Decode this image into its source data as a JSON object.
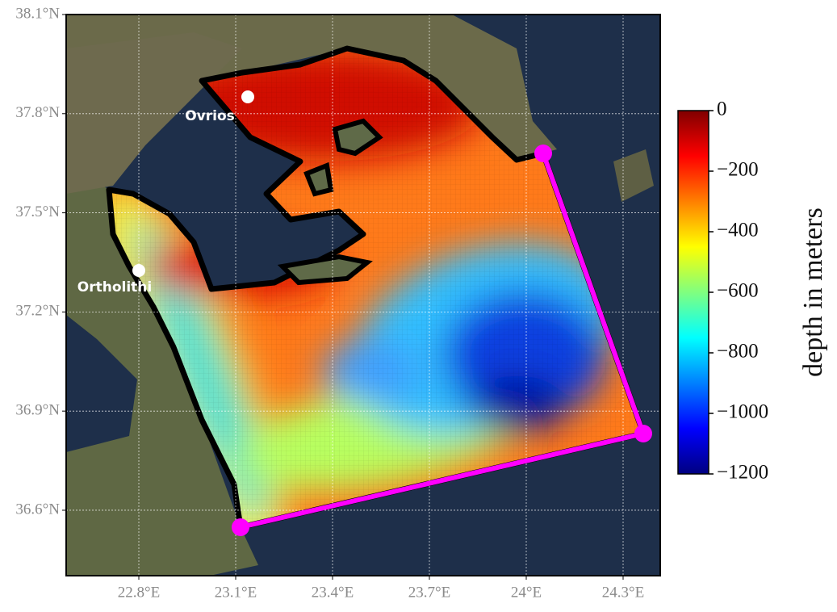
{
  "map": {
    "xlim": [
      22.575,
      24.415
    ],
    "ylim": [
      36.402,
      38.1
    ],
    "xticks": [
      {
        "value": 22.8,
        "label": "22.8°E"
      },
      {
        "value": 23.1,
        "label": "23.1°E"
      },
      {
        "value": 23.4,
        "label": "23.4°E"
      },
      {
        "value": 23.7,
        "label": "23.7°E"
      },
      {
        "value": 24.0,
        "label": "24°E"
      },
      {
        "value": 24.3,
        "label": "24.3°E"
      }
    ],
    "yticks": [
      {
        "value": 38.1,
        "label": "38.1°N"
      },
      {
        "value": 37.8,
        "label": "37.8°N"
      },
      {
        "value": 37.5,
        "label": "37.5°N"
      },
      {
        "value": 37.2,
        "label": "37.2°N"
      },
      {
        "value": 36.9,
        "label": "36.9°N"
      },
      {
        "value": 36.6,
        "label": "36.6°N"
      }
    ],
    "places": [
      {
        "name": "Ovrios"
      },
      {
        "name": "Ortholithi"
      }
    ],
    "colorbar": {
      "label": "depth in meters",
      "lim": [
        -1200,
        0
      ],
      "ticks": [
        {
          "value": 0,
          "label": "0"
        },
        {
          "value": -200,
          "label": "−200"
        },
        {
          "value": -400,
          "label": "−400"
        },
        {
          "value": -600,
          "label": "−600"
        },
        {
          "value": -800,
          "label": "−800"
        },
        {
          "value": -1000,
          "label": "−1000"
        },
        {
          "value": -1200,
          "label": "−1200"
        }
      ]
    }
  }
}
